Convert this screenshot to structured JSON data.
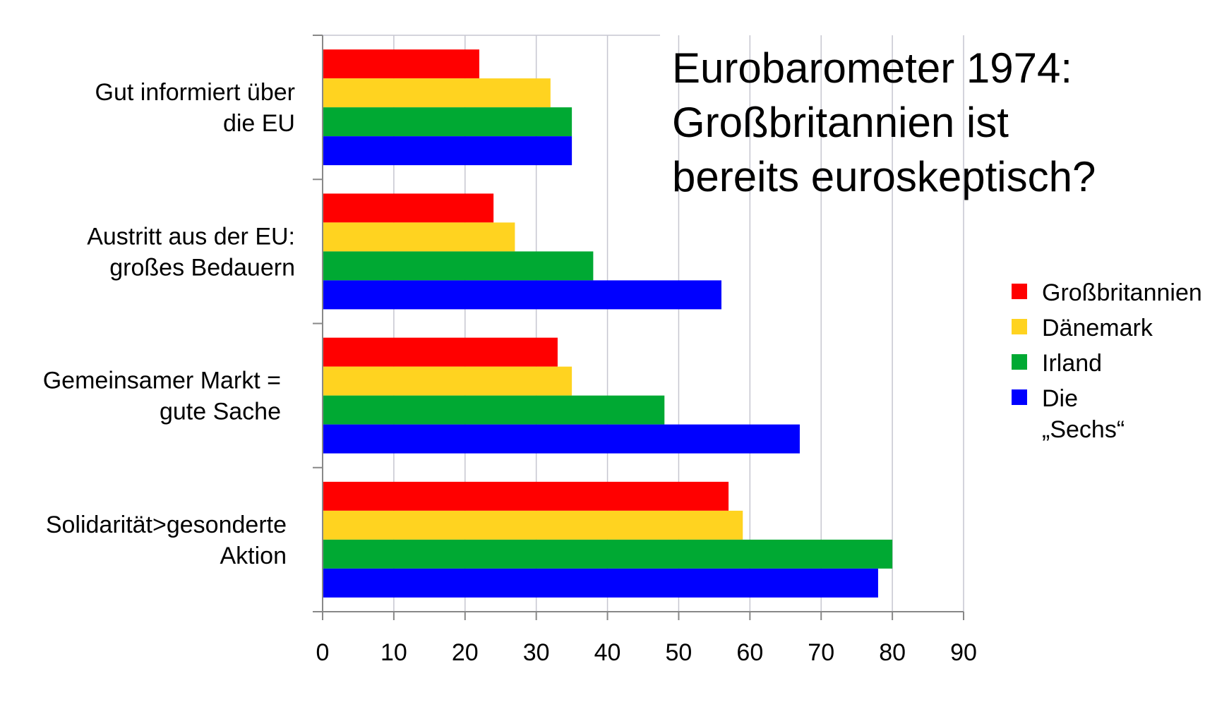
{
  "chart_data": {
    "type": "bar",
    "orientation": "horizontal",
    "title_lines": [
      "Eurobarometer 1974:",
      "Großbritannien ist",
      "bereits euroskeptisch?"
    ],
    "categories": [
      {
        "lines": [
          "Gut informiert über",
          "die EU"
        ]
      },
      {
        "lines": [
          "Austritt aus der EU:",
          "großes Bedauern"
        ]
      },
      {
        "lines": [
          "Gemeinsamer Markt =",
          "gute Sache"
        ]
      },
      {
        "lines": [
          "Solidarität>gesonderte",
          "Aktion"
        ]
      }
    ],
    "series": [
      {
        "name": "Großbritannien",
        "color": "#ff0000",
        "values": [
          22,
          24,
          33,
          57
        ]
      },
      {
        "name": "Dänemark",
        "color": "#ffd320",
        "values": [
          32,
          27,
          35,
          59
        ]
      },
      {
        "name": "Irland",
        "color": "#00a933",
        "values": [
          35,
          38,
          48,
          80
        ]
      },
      {
        "name": "Die „Sechs“",
        "name_lines": [
          "Die",
          "„Sechs“"
        ],
        "color": "#0000ff",
        "values": [
          35,
          56,
          67,
          78
        ]
      }
    ],
    "xlim": [
      0,
      90
    ],
    "xticks": [
      "0",
      "10",
      "20",
      "30",
      "40",
      "50",
      "60",
      "70",
      "80",
      "90"
    ],
    "grid": "vertical",
    "legend": "right"
  }
}
